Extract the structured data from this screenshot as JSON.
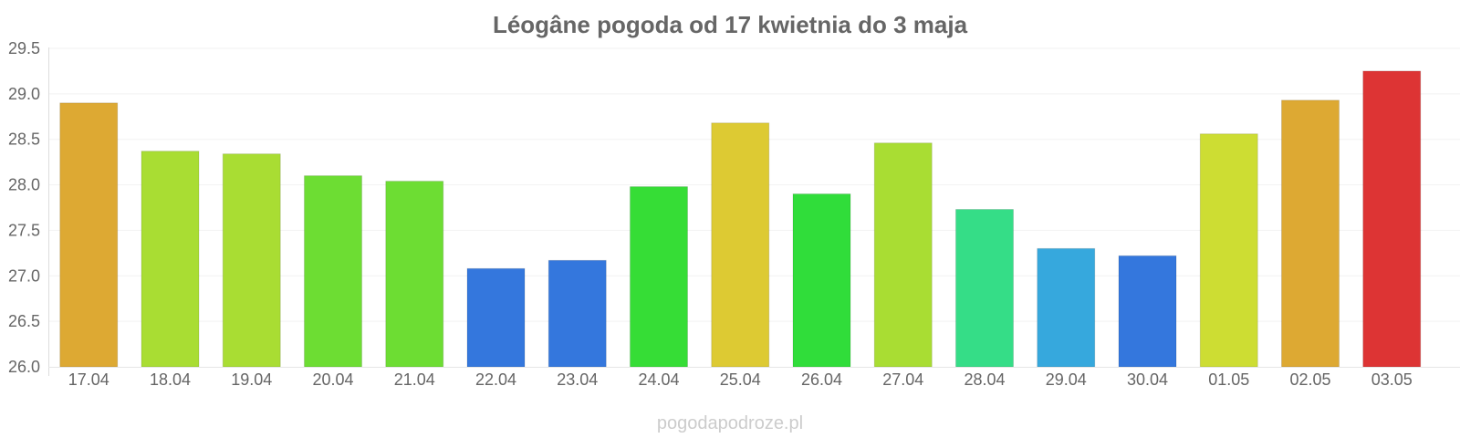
{
  "chart_data": {
    "type": "bar",
    "title": "Léogâne pogoda od 17 kwietnia do 3 maja",
    "xlabel": "",
    "ylabel": "",
    "categories": [
      "17.04",
      "18.04",
      "19.04",
      "20.04",
      "21.04",
      "22.04",
      "23.04",
      "24.04",
      "25.04",
      "26.04",
      "27.04",
      "28.04",
      "29.04",
      "30.04",
      "01.05",
      "02.05",
      "03.05"
    ],
    "values": [
      28.9,
      28.37,
      28.34,
      28.1,
      28.04,
      27.08,
      27.17,
      27.98,
      28.68,
      27.9,
      28.46,
      27.73,
      27.3,
      27.22,
      28.56,
      28.93,
      29.25
    ],
    "colors": [
      "#dda933",
      "#a9dd33",
      "#a9dd33",
      "#6ddd33",
      "#6ddd33",
      "#3477dd",
      "#3477dd",
      "#36dd36",
      "#ddca33",
      "#30dd3a",
      "#a9dd33",
      "#35dd87",
      "#36a8dd",
      "#3477dd",
      "#cddd33",
      "#dda933",
      "#dd3434"
    ],
    "ylim": [
      26.0,
      29.5
    ],
    "yticks": [
      "26.0",
      "26.5",
      "27.0",
      "27.5",
      "28.0",
      "28.5",
      "29.0",
      "29.5"
    ],
    "grid": true,
    "legend": "none"
  },
  "credit": "pogodapodroze.pl"
}
